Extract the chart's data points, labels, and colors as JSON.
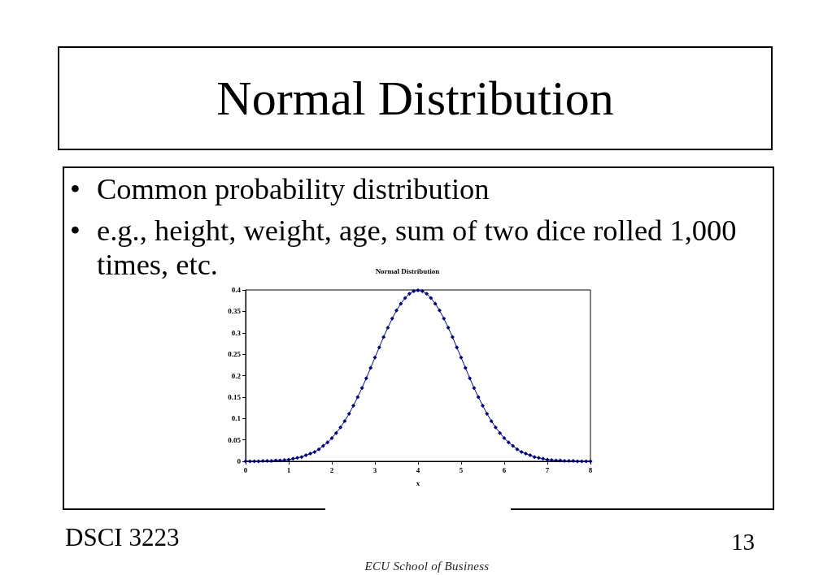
{
  "chart_data": {
    "type": "line",
    "title": "Normal Distribution",
    "xlabel": "x",
    "annotations": [
      "Normal Distribution",
      "•",
      "Common probability distribution",
      "•",
      "e.g., height, weight, age, sum of two dice rolled 1,000",
      "times, etc.",
      "DSCI 3223",
      "13",
      "ECU School of Business"
    ],
    "x": [
      0,
      0.1,
      0.2,
      0.3,
      0.4,
      0.5,
      0.6,
      0.7,
      0.8,
      0.9,
      1,
      1.1,
      1.2,
      1.3,
      1.4,
      1.5,
      1.6,
      1.7,
      1.8,
      1.9,
      2,
      2.1,
      2.2,
      2.3,
      2.4,
      2.5,
      2.6,
      2.7,
      2.8,
      2.9,
      3,
      3.1,
      3.2,
      3.3,
      3.4,
      3.5,
      3.6,
      3.7,
      3.8,
      3.9,
      4,
      4.1,
      4.2,
      4.3,
      4.4,
      4.5,
      4.6,
      4.7,
      4.8,
      4.9,
      5,
      5.1,
      5.2,
      5.3,
      5.4,
      5.5,
      5.6,
      5.7,
      5.8,
      5.9,
      6,
      6.1,
      6.2,
      6.3,
      6.4,
      6.5,
      6.6,
      6.7,
      6.8,
      6.9,
      7,
      7.1,
      7.2,
      7.3,
      7.4,
      7.5,
      7.6,
      7.7,
      7.8,
      7.9,
      8
    ],
    "values": [
      0,
      0,
      0,
      0,
      0.001,
      0.001,
      0.001,
      0.002,
      0.002,
      0.003,
      0.004,
      0.006,
      0.008,
      0.01,
      0.014,
      0.018,
      0.022,
      0.028,
      0.036,
      0.044,
      0.054,
      0.066,
      0.079,
      0.094,
      0.111,
      0.13,
      0.15,
      0.171,
      0.194,
      0.218,
      0.242,
      0.266,
      0.29,
      0.312,
      0.333,
      0.352,
      0.368,
      0.381,
      0.391,
      0.397,
      0.399,
      0.397,
      0.391,
      0.381,
      0.368,
      0.352,
      0.333,
      0.312,
      0.29,
      0.266,
      0.242,
      0.218,
      0.194,
      0.171,
      0.15,
      0.13,
      0.111,
      0.094,
      0.079,
      0.066,
      0.054,
      0.044,
      0.036,
      0.028,
      0.022,
      0.018,
      0.014,
      0.01,
      0.008,
      0.006,
      0.004,
      0.003,
      0.002,
      0.002,
      0.001,
      0.001,
      0.001,
      0,
      0,
      0,
      0
    ],
    "color": "#000080",
    "marker": "diamond",
    "line_style": "solid",
    "grid": false,
    "xlim": [
      0,
      8
    ],
    "xticks": [
      0,
      1,
      2,
      3,
      4,
      5,
      6,
      7,
      8
    ],
    "ylim": [
      0,
      0.4
    ],
    "yticks": [
      0,
      0.05,
      0.1,
      0.15,
      0.2,
      0.25,
      0.3,
      0.35,
      0.4
    ]
  }
}
